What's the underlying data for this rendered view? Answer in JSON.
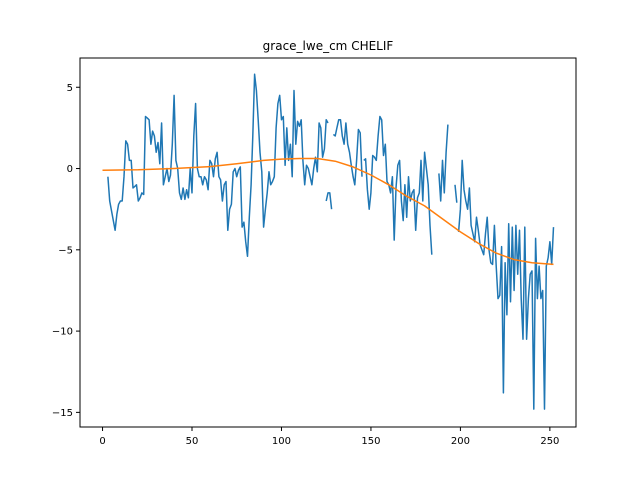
{
  "chart_data": {
    "type": "line",
    "title": "grace_lwe_cm CHELIF",
    "xlabel": "",
    "ylabel": "",
    "xlim": [
      -12.6,
      264.6
    ],
    "ylim": [
      -15.9,
      6.8
    ],
    "xticks": [
      0,
      50,
      100,
      150,
      200,
      250
    ],
    "yticks": [
      5,
      0,
      -5,
      -10,
      -15
    ],
    "grid": false,
    "series": [
      {
        "color": "#1f77b4",
        "segments": [
          [
            [
              3,
              -0.5
            ],
            [
              4,
              -2
            ],
            [
              7,
              -3.8
            ],
            [
              8,
              -2.8
            ],
            [
              9,
              -2.2
            ],
            [
              10,
              -2
            ],
            [
              11,
              -2
            ],
            [
              12,
              -0.5
            ],
            [
              13,
              1.7
            ],
            [
              14,
              1.5
            ],
            [
              15,
              0.5
            ],
            [
              16,
              0.5
            ],
            [
              17,
              -1.2
            ],
            [
              18,
              -1.1
            ],
            [
              19,
              -1
            ],
            [
              20,
              -2
            ],
            [
              21,
              -1.8
            ],
            [
              22,
              -1.5
            ],
            [
              23,
              -1.6
            ],
            [
              24,
              3.2
            ],
            [
              25,
              3.1
            ],
            [
              26,
              3
            ],
            [
              27,
              1.5
            ],
            [
              28,
              2.3
            ],
            [
              29,
              2
            ],
            [
              30,
              1
            ],
            [
              31,
              1.6
            ],
            [
              32,
              0.3
            ],
            [
              33,
              2.8
            ],
            [
              34,
              -1
            ],
            [
              35,
              -0.5
            ],
            [
              36,
              0
            ],
            [
              37,
              -0.8
            ],
            [
              38,
              -0.4
            ],
            [
              39,
              1.5
            ],
            [
              40,
              4.5
            ],
            [
              41,
              0.5
            ],
            [
              42,
              0
            ],
            [
              43,
              -1.5
            ],
            [
              44,
              -1.9
            ],
            [
              45,
              -1.2
            ],
            [
              46,
              -1.9
            ],
            [
              47,
              -1.3
            ],
            [
              48,
              -1.8
            ],
            [
              49,
              0
            ],
            [
              50,
              -1.5
            ],
            [
              51,
              2
            ],
            [
              52,
              4
            ],
            [
              53,
              0
            ],
            [
              54,
              -0.5
            ],
            [
              55,
              -0.5
            ],
            [
              56,
              -1
            ],
            [
              57,
              -0.5
            ],
            [
              58,
              -0.7
            ],
            [
              59,
              -1.3
            ],
            [
              60,
              0.5
            ],
            [
              61,
              0.3
            ],
            [
              62,
              -0.5
            ],
            [
              63,
              0.6
            ],
            [
              64,
              1
            ],
            [
              65,
              -0.5
            ],
            [
              66,
              -0.7
            ],
            [
              67,
              -2
            ],
            [
              68,
              -1
            ],
            [
              69,
              -0.8
            ],
            [
              70,
              -3.8
            ],
            [
              71,
              -2.5
            ],
            [
              72,
              -2.2
            ],
            [
              73,
              -0.2
            ],
            [
              74,
              0
            ],
            [
              75,
              -0.5
            ],
            [
              76,
              -0.1
            ],
            [
              77,
              0.1
            ],
            [
              78,
              -3.6
            ],
            [
              79,
              -3.3
            ],
            [
              80,
              -4.5
            ],
            [
              81,
              -5.4
            ],
            [
              82,
              -3
            ],
            [
              83,
              -1
            ],
            [
              84,
              2
            ],
            [
              85,
              5.8
            ],
            [
              86,
              4.8
            ],
            [
              87,
              3
            ],
            [
              88,
              1
            ],
            [
              89,
              -0.2
            ],
            [
              90,
              -3.6
            ],
            [
              91,
              -2.5
            ],
            [
              92,
              -1.5
            ],
            [
              93,
              -0.2
            ],
            [
              94,
              -1
            ],
            [
              95,
              -0.8
            ],
            [
              96,
              -0.5
            ],
            [
              97,
              2.5
            ],
            [
              98,
              4
            ],
            [
              99,
              4.5
            ],
            [
              100,
              3
            ],
            [
              101,
              3.2
            ],
            [
              102,
              0.2
            ],
            [
              103,
              2.5
            ],
            [
              104,
              0.5
            ],
            [
              105,
              1.5
            ],
            [
              106,
              -0.5
            ],
            [
              107,
              4.8
            ],
            [
              108,
              1.5
            ],
            [
              109,
              2.9
            ],
            [
              110,
              2.6
            ],
            [
              111,
              3
            ],
            [
              112,
              0.5
            ],
            [
              113,
              -1
            ],
            [
              114,
              0.2
            ],
            [
              115,
              0
            ],
            [
              116,
              -0.5
            ],
            [
              117,
              -1
            ],
            [
              118,
              0
            ],
            [
              119,
              0.7
            ],
            [
              120,
              -0.2
            ],
            [
              121,
              2.8
            ],
            [
              122,
              2.5
            ],
            [
              123,
              0.7
            ],
            [
              124,
              1.2
            ],
            [
              125,
              3
            ],
            [
              126,
              2.8
            ]
          ],
          [
            [
              125,
              -2
            ],
            [
              126,
              -1.5
            ],
            [
              127,
              -1.5
            ],
            [
              128,
              -2.5
            ]
          ],
          [
            [
              129,
              2.1
            ],
            [
              130,
              2
            ],
            [
              131,
              2.5
            ],
            [
              132,
              3
            ],
            [
              133,
              3
            ],
            [
              134,
              2
            ],
            [
              135,
              1.5
            ],
            [
              136,
              2.8
            ],
            [
              137,
              1.5
            ],
            [
              138,
              1
            ],
            [
              139,
              0.2
            ],
            [
              140,
              -0.5
            ],
            [
              141,
              -1
            ],
            [
              142,
              0.5
            ],
            [
              143,
              2.4
            ],
            [
              144,
              2.2
            ],
            [
              145,
              -0.5
            ]
          ],
          [
            [
              146,
              0.5
            ],
            [
              147,
              0.6
            ],
            [
              148,
              -1.3
            ],
            [
              149,
              -2.5
            ],
            [
              150,
              -1.5
            ],
            [
              151,
              0.8
            ],
            [
              152,
              0.7
            ],
            [
              153,
              0.5
            ],
            [
              154,
              2
            ],
            [
              155,
              3.2
            ],
            [
              156,
              3
            ],
            [
              157,
              0.8
            ],
            [
              158,
              1.5
            ],
            [
              159,
              -0.8
            ],
            [
              160,
              -1
            ],
            [
              161,
              -1.5
            ],
            [
              162,
              -0.5
            ],
            [
              163,
              -4.4
            ],
            [
              164,
              -1.2
            ],
            [
              165,
              0.2
            ],
            [
              166,
              0.5
            ],
            [
              167,
              -2
            ],
            [
              168,
              -3.2
            ],
            [
              169,
              -1
            ],
            [
              170,
              -3
            ],
            [
              171,
              -0.5
            ],
            [
              172,
              -2
            ],
            [
              173,
              -1.5
            ],
            [
              174,
              -1.3
            ],
            [
              175,
              -3.8
            ],
            [
              176,
              -1.8
            ],
            [
              177,
              -1.5
            ],
            [
              178,
              0.5
            ],
            [
              179,
              -2
            ],
            [
              180,
              1
            ],
            [
              181,
              0
            ],
            [
              182,
              -1
            ],
            [
              183,
              -3.5
            ],
            [
              184,
              -5.3
            ]
          ],
          [
            [
              188,
              -0.3
            ],
            [
              189,
              -2
            ],
            [
              190,
              0.5
            ],
            [
              191,
              -1.5
            ],
            [
              192,
              1
            ],
            [
              193,
              2.7
            ]
          ],
          [
            [
              197,
              -1
            ],
            [
              198,
              -2.1
            ]
          ],
          [
            [
              199,
              -3.9
            ],
            [
              200,
              -2.5
            ],
            [
              201,
              0.5
            ],
            [
              202,
              -1.3
            ],
            [
              203,
              -2
            ],
            [
              204,
              -2.5
            ],
            [
              205,
              -1.2
            ],
            [
              206,
              -3.5
            ],
            [
              207,
              -4
            ],
            [
              208,
              -4.5
            ],
            [
              209,
              -3
            ],
            [
              210,
              -3.8
            ],
            [
              211,
              -4.7
            ],
            [
              212,
              -5
            ],
            [
              213,
              -5.3
            ],
            [
              214,
              -4
            ],
            [
              215,
              -3
            ],
            [
              216,
              -5
            ],
            [
              217,
              -5.8
            ],
            [
              218,
              -5.9
            ],
            [
              219,
              -3.5
            ],
            [
              220,
              -6
            ],
            [
              221,
              -8
            ],
            [
              222,
              -7.8
            ],
            [
              223,
              -4.8
            ],
            [
              224,
              -13.8
            ],
            [
              225,
              -5.8
            ],
            [
              226,
              -9
            ],
            [
              227,
              -3.4
            ],
            [
              228,
              -8.2
            ],
            [
              229,
              -3.6
            ],
            [
              230,
              -7.5
            ],
            [
              231,
              -3.5
            ],
            [
              232,
              -6.5
            ],
            [
              233,
              -3.8
            ],
            [
              234,
              -8
            ],
            [
              235,
              -10.5
            ],
            [
              236,
              -3.6
            ],
            [
              237,
              -10.5
            ],
            [
              238,
              -8
            ],
            [
              239,
              -6.5
            ],
            [
              240,
              -6.3
            ],
            [
              241,
              -14.8
            ],
            [
              242,
              -4.3
            ],
            [
              243,
              -8
            ],
            [
              244,
              -6
            ],
            [
              245,
              -8
            ],
            [
              246,
              -7.5
            ],
            [
              247,
              -14.8
            ],
            [
              248,
              -6
            ],
            [
              249,
              -5.5
            ],
            [
              250,
              -4.5
            ],
            [
              251,
              -5.9
            ],
            [
              252,
              -3.6
            ]
          ]
        ]
      },
      {
        "color": "#ff7f0e",
        "points": [
          [
            0,
            -0.1
          ],
          [
            20,
            -0.08
          ],
          [
            40,
            0
          ],
          [
            60,
            0.12
          ],
          [
            75,
            0.3
          ],
          [
            90,
            0.5
          ],
          [
            100,
            0.58
          ],
          [
            110,
            0.62
          ],
          [
            120,
            0.62
          ],
          [
            130,
            0.45
          ],
          [
            140,
            0.1
          ],
          [
            150,
            -0.4
          ],
          [
            160,
            -1.0
          ],
          [
            170,
            -1.7
          ],
          [
            180,
            -2.3
          ],
          [
            190,
            -3.1
          ],
          [
            200,
            -3.9
          ],
          [
            210,
            -4.6
          ],
          [
            220,
            -5.2
          ],
          [
            230,
            -5.6
          ],
          [
            240,
            -5.8
          ],
          [
            252,
            -5.9
          ]
        ]
      }
    ]
  }
}
